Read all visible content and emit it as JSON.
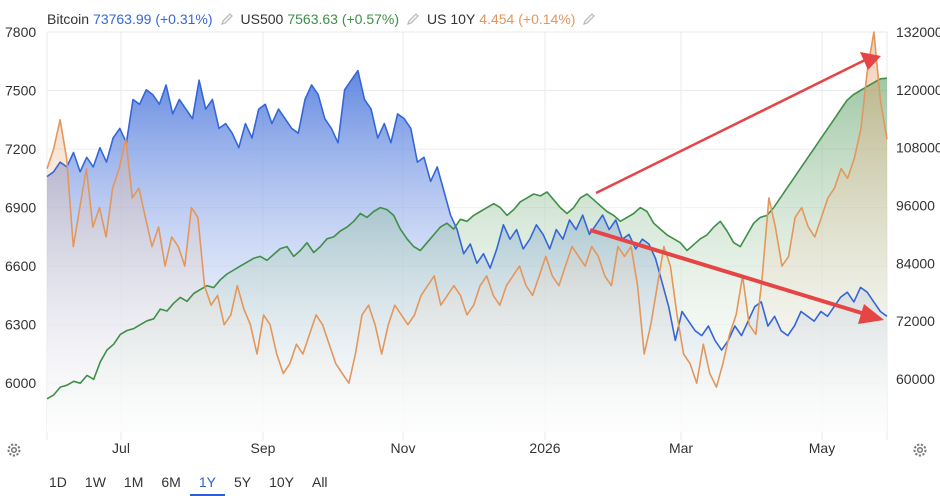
{
  "legend": [
    {
      "name": "Bitcoin",
      "value": "73763.99",
      "change": "(+0.31%)",
      "color": "#3566d8"
    },
    {
      "name": "US500",
      "value": "7563.63",
      "change": "(+0.57%)",
      "color": "#3f8f48"
    },
    {
      "name": "US 10Y",
      "value": "4.454",
      "change": "(+0.14%)",
      "color": "#e3975c"
    }
  ],
  "ranges": [
    "1D",
    "1W",
    "1M",
    "6M",
    "1Y",
    "5Y",
    "10Y",
    "All"
  ],
  "active_range": "1Y",
  "chart_data": {
    "type": "area",
    "x_ticks": [
      "Jul",
      "Sep",
      "Nov",
      "2026",
      "Mar",
      "May"
    ],
    "left_axis": {
      "ticks": [
        "7800",
        "7500",
        "7200",
        "6900",
        "6600",
        "6300",
        "6000"
      ],
      "ylim": [
        5750,
        7800
      ]
    },
    "right_axis": {
      "ticks": [
        "132000",
        "120000",
        "108000",
        "96000",
        "84000",
        "72000",
        "60000"
      ],
      "ylim": [
        49000,
        132000
      ]
    },
    "grid": true,
    "legend_position": "top-left",
    "series": [
      {
        "name": "Bitcoin",
        "axis": "right",
        "color": "#3566d8",
        "values": [
          102000,
          103000,
          105000,
          104000,
          107000,
          103000,
          106000,
          104000,
          108000,
          105000,
          110000,
          112000,
          109000,
          118000,
          117000,
          120000,
          119000,
          117000,
          121000,
          115000,
          118000,
          116000,
          114000,
          122000,
          116000,
          118000,
          112000,
          113000,
          111000,
          108000,
          113000,
          110000,
          116000,
          117000,
          113000,
          116000,
          114000,
          112000,
          111000,
          118000,
          121000,
          119000,
          114000,
          112000,
          109000,
          120000,
          122000,
          124000,
          118000,
          116000,
          110000,
          113000,
          109000,
          115000,
          114000,
          112000,
          105000,
          106000,
          101000,
          104000,
          99000,
          94000,
          91000,
          86000,
          88000,
          84000,
          86000,
          83000,
          87000,
          92000,
          89000,
          91000,
          87000,
          89000,
          92000,
          90000,
          87000,
          91000,
          89000,
          93000,
          91000,
          94000,
          90000,
          92000,
          94000,
          91000,
          93000,
          89000,
          90000,
          87000,
          89000,
          88000,
          85000,
          80000,
          75000,
          68000,
          74000,
          72000,
          70000,
          69000,
          71000,
          68000,
          66000,
          68000,
          71000,
          69000,
          72000,
          75000,
          76000,
          71000,
          73000,
          70000,
          69000,
          71000,
          74000,
          73000,
          72000,
          74000,
          73000,
          75000,
          77000,
          78000,
          76000,
          79000,
          78000,
          76000,
          74000,
          73000
        ]
      },
      {
        "name": "US500",
        "axis": "left",
        "color": "#3f8f48",
        "values": [
          5920,
          5940,
          5980,
          5990,
          6010,
          6000,
          6040,
          6020,
          6110,
          6170,
          6200,
          6250,
          6270,
          6280,
          6300,
          6320,
          6330,
          6380,
          6370,
          6410,
          6440,
          6420,
          6460,
          6480,
          6500,
          6490,
          6530,
          6560,
          6580,
          6600,
          6620,
          6640,
          6650,
          6630,
          6660,
          6690,
          6700,
          6650,
          6680,
          6720,
          6670,
          6700,
          6740,
          6750,
          6780,
          6800,
          6830,
          6870,
          6850,
          6880,
          6900,
          6890,
          6860,
          6790,
          6740,
          6700,
          6680,
          6720,
          6760,
          6800,
          6820,
          6790,
          6840,
          6830,
          6860,
          6880,
          6900,
          6920,
          6900,
          6860,
          6890,
          6930,
          6950,
          6970,
          6960,
          6980,
          6940,
          6900,
          6870,
          6900,
          6950,
          6970,
          6940,
          6910,
          6880,
          6860,
          6830,
          6850,
          6870,
          6900,
          6880,
          6820,
          6790,
          6760,
          6740,
          6720,
          6680,
          6710,
          6740,
          6760,
          6800,
          6830,
          6780,
          6720,
          6700,
          6760,
          6820,
          6850,
          6860,
          6900,
          6950,
          7000,
          7050,
          7100,
          7150,
          7200,
          7250,
          7300,
          7350,
          7400,
          7450,
          7480,
          7500,
          7520,
          7540,
          7560,
          7563
        ]
      },
      {
        "name": "US 10Y",
        "axis": "left",
        "color": "#e3975c",
        "values": [
          7100,
          7200,
          7350,
          7150,
          6700,
          6900,
          7100,
          6800,
          6900,
          6750,
          7000,
          7100,
          7250,
          6950,
          7000,
          6850,
          6700,
          6800,
          6600,
          6750,
          6700,
          6600,
          6900,
          6850,
          6500,
          6400,
          6450,
          6300,
          6350,
          6500,
          6380,
          6300,
          6150,
          6350,
          6300,
          6150,
          6050,
          6100,
          6200,
          6150,
          6250,
          6350,
          6300,
          6200,
          6100,
          6050,
          6000,
          6150,
          6350,
          6400,
          6300,
          6150,
          6300,
          6400,
          6350,
          6300,
          6350,
          6450,
          6500,
          6550,
          6400,
          6450,
          6500,
          6450,
          6350,
          6400,
          6500,
          6550,
          6450,
          6400,
          6500,
          6550,
          6600,
          6500,
          6450,
          6550,
          6650,
          6550,
          6500,
          6600,
          6700,
          6650,
          6600,
          6700,
          6650,
          6550,
          6500,
          6700,
          6650,
          6700,
          6500,
          6150,
          6300,
          6500,
          6700,
          6600,
          6350,
          6150,
          6100,
          6000,
          6200,
          6050,
          5980,
          6100,
          6250,
          6350,
          6550,
          6300,
          6250,
          6550,
          6950,
          6800,
          6600,
          6650,
          6850,
          6900,
          6800,
          6750,
          6850,
          6950,
          7000,
          7100,
          7050,
          7150,
          7300,
          7600,
          7800,
          7450,
          7250
        ]
      }
    ]
  }
}
